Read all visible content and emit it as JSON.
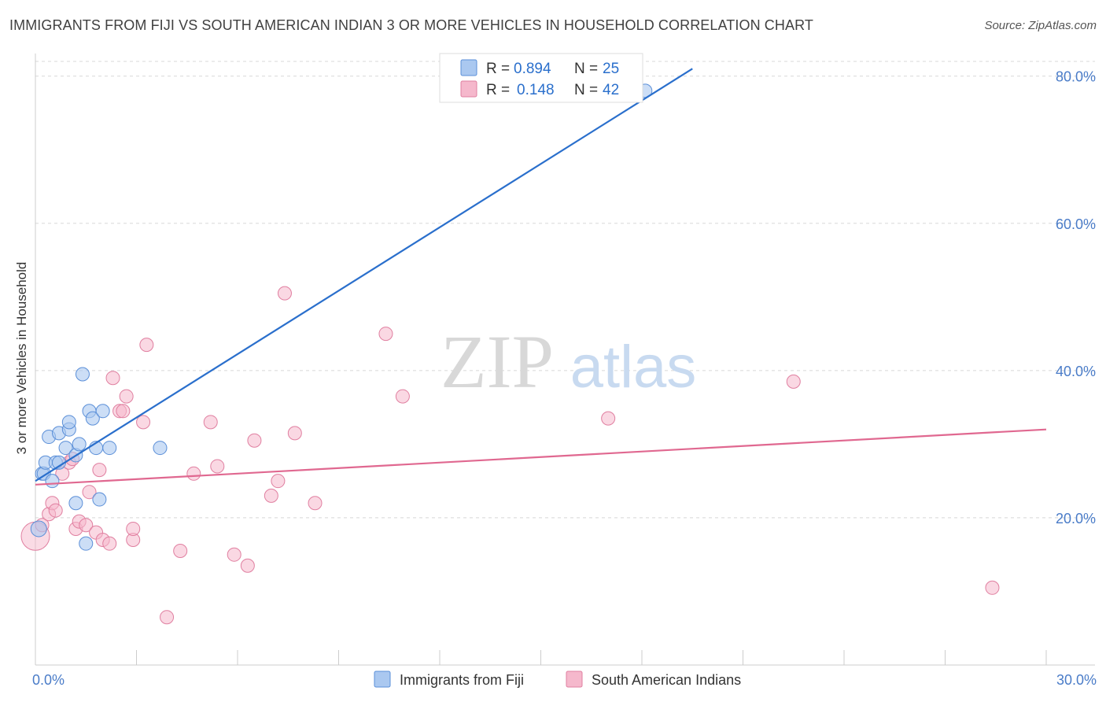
{
  "title": "IMMIGRANTS FROM FIJI VS SOUTH AMERICAN INDIAN 3 OR MORE VEHICLES IN HOUSEHOLD CORRELATION CHART",
  "source": "Source: ZipAtlas.com",
  "watermark": {
    "zip": "ZIP",
    "atlas": "atlas"
  },
  "colors": {
    "blue_fill": "#aac8f0",
    "blue_stroke": "#5b8fd8",
    "blue_line": "#2a6fcc",
    "pink_fill": "#f5b8cc",
    "pink_stroke": "#e07fa0",
    "pink_line": "#e06890",
    "tick_label": "#4a7cc8",
    "grid": "#d8d8d8"
  },
  "legend_top": [
    {
      "r_label": "R =",
      "r_value": "0.894",
      "n_label": "N =",
      "n_value": "25"
    },
    {
      "r_label": "R =",
      "r_value": "0.148",
      "n_label": "N =",
      "n_value": "42"
    }
  ],
  "chart_data": {
    "type": "scatter",
    "title": "IMMIGRANTS FROM FIJI VS SOUTH AMERICAN INDIAN 3 OR MORE VEHICLES IN HOUSEHOLD CORRELATION CHART",
    "xlabel": "",
    "ylabel": "3 or more Vehicles in Household",
    "xlim": [
      0,
      30
    ],
    "ylim": [
      0,
      82
    ],
    "x_tick_labels": [
      {
        "value": 0,
        "label": "0.0%"
      },
      {
        "value": 30,
        "label": "30.0%"
      }
    ],
    "y_tick_labels": [
      {
        "value": 20,
        "label": "20.0%"
      },
      {
        "value": 40,
        "label": "40.0%"
      },
      {
        "value": 60,
        "label": "60.0%"
      },
      {
        "value": 80,
        "label": "80.0%"
      }
    ],
    "series": [
      {
        "name": "Immigrants from Fiji",
        "color": "blue",
        "points": [
          [
            0.1,
            18.5
          ],
          [
            0.2,
            26.0
          ],
          [
            0.25,
            26.0
          ],
          [
            0.3,
            27.5
          ],
          [
            0.4,
            31.0
          ],
          [
            0.5,
            25.0
          ],
          [
            0.6,
            27.5
          ],
          [
            0.7,
            27.5
          ],
          [
            0.7,
            31.5
          ],
          [
            0.9,
            29.5
          ],
          [
            1.0,
            32.0
          ],
          [
            1.0,
            33.0
          ],
          [
            1.2,
            22.0
          ],
          [
            1.2,
            28.5
          ],
          [
            1.3,
            30.0
          ],
          [
            1.4,
            39.5
          ],
          [
            1.5,
            16.5
          ],
          [
            1.6,
            34.5
          ],
          [
            1.7,
            33.5
          ],
          [
            1.8,
            29.5
          ],
          [
            1.9,
            22.5
          ],
          [
            2.0,
            34.5
          ],
          [
            2.2,
            29.5
          ],
          [
            3.7,
            29.5
          ],
          [
            18.1,
            78.0
          ]
        ],
        "trendline": {
          "x0": 0,
          "y0": 25.0,
          "x1": 19.5,
          "y1": 81.0
        }
      },
      {
        "name": "South American Indians",
        "color": "pink",
        "points": [
          [
            0.0,
            17.5
          ],
          [
            0.2,
            19.0
          ],
          [
            0.4,
            20.5
          ],
          [
            0.5,
            22.0
          ],
          [
            0.6,
            21.0
          ],
          [
            0.8,
            26.0
          ],
          [
            1.0,
            27.5
          ],
          [
            1.1,
            28.0
          ],
          [
            1.2,
            18.5
          ],
          [
            1.3,
            19.5
          ],
          [
            1.5,
            19.0
          ],
          [
            1.6,
            23.5
          ],
          [
            1.8,
            18.0
          ],
          [
            1.9,
            26.5
          ],
          [
            2.0,
            17.0
          ],
          [
            2.2,
            16.5
          ],
          [
            2.3,
            39.0
          ],
          [
            2.5,
            34.5
          ],
          [
            2.6,
            34.5
          ],
          [
            2.7,
            36.5
          ],
          [
            2.9,
            17.0
          ],
          [
            2.9,
            18.5
          ],
          [
            3.2,
            33.0
          ],
          [
            3.3,
            43.5
          ],
          [
            4.3,
            15.5
          ],
          [
            3.9,
            6.5
          ],
          [
            4.7,
            26.0
          ],
          [
            5.2,
            33.0
          ],
          [
            5.4,
            27.0
          ],
          [
            5.9,
            15.0
          ],
          [
            6.3,
            13.5
          ],
          [
            6.5,
            30.5
          ],
          [
            7.0,
            23.0
          ],
          [
            7.2,
            25.0
          ],
          [
            7.4,
            50.5
          ],
          [
            7.7,
            31.5
          ],
          [
            8.3,
            22.0
          ],
          [
            10.4,
            45.0
          ],
          [
            10.9,
            36.5
          ],
          [
            17.0,
            33.5
          ],
          [
            22.5,
            38.5
          ],
          [
            28.4,
            10.5
          ]
        ],
        "trendline": {
          "x0": 0,
          "y0": 24.5,
          "x1": 30,
          "y1": 32.0
        }
      }
    ],
    "legend": [
      "Immigrants from Fiji",
      "South American Indians"
    ],
    "legend_position": "bottom-center",
    "grid": true
  }
}
